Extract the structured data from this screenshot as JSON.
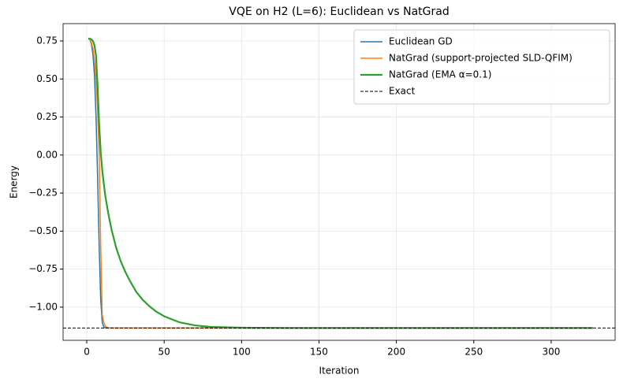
{
  "chart_data": {
    "type": "line",
    "title": "VQE on H2 (L=6): Euclidean vs NatGrad",
    "xlabel": "Iteration",
    "ylabel": "Energy",
    "x": [
      1,
      2,
      3,
      4,
      5,
      6,
      7,
      8,
      9,
      10,
      11,
      12,
      13,
      14,
      15,
      16,
      17,
      18,
      19,
      20,
      22,
      25,
      28,
      32,
      36,
      40,
      45,
      50,
      60,
      70,
      80,
      100,
      130,
      160,
      200,
      250,
      300,
      327
    ],
    "series": [
      {
        "name": "Euclidean GD",
        "color": "#1f77b4",
        "line_width": 1.5,
        "values": [
          0.765,
          0.76,
          0.73,
          0.66,
          0.52,
          0.25,
          -0.15,
          -0.6,
          -0.95,
          -1.1,
          -1.13,
          -1.136,
          -1.137,
          -1.137,
          -1.137,
          -1.137,
          -1.137,
          -1.137,
          -1.137,
          -1.137,
          -1.137,
          -1.137,
          -1.137,
          -1.137,
          -1.137,
          -1.137,
          -1.137,
          -1.137,
          -1.137,
          -1.137,
          -1.137,
          -1.137,
          -1.137,
          -1.137,
          -1.137,
          -1.137,
          -1.137,
          -1.137
        ]
      },
      {
        "name": "NatGrad (support-projected SLD-QFIM)",
        "color": "#ff7f0e",
        "line_width": 1.5,
        "values": [
          0.765,
          0.76,
          0.74,
          0.7,
          0.62,
          0.5,
          0.3,
          0.0,
          -0.6,
          -1.05,
          -1.1,
          -1.125,
          -1.132,
          -1.135,
          -1.137,
          -1.137,
          -1.137,
          -1.137,
          -1.137,
          -1.137,
          -1.137,
          -1.137,
          -1.137,
          -1.137,
          -1.137,
          -1.137,
          -1.137,
          -1.137,
          -1.137,
          -1.137,
          -1.137,
          -1.137,
          -1.137,
          -1.137,
          -1.137,
          -1.137,
          -1.137,
          -1.137
        ]
      },
      {
        "name": "NatGrad (EMA α=0.1)",
        "color": "#2ca02c",
        "line_width": 2.2,
        "values": [
          0.765,
          0.765,
          0.76,
          0.75,
          0.72,
          0.65,
          0.45,
          0.2,
          0.02,
          -0.1,
          -0.19,
          -0.27,
          -0.33,
          -0.39,
          -0.44,
          -0.49,
          -0.53,
          -0.57,
          -0.61,
          -0.64,
          -0.7,
          -0.77,
          -0.83,
          -0.9,
          -0.95,
          -0.99,
          -1.03,
          -1.06,
          -1.1,
          -1.12,
          -1.13,
          -1.135,
          -1.137,
          -1.137,
          -1.137,
          -1.137,
          -1.137,
          -1.137
        ]
      }
    ],
    "reference_line": {
      "name": "Exact",
      "value": -1.137,
      "color": "#000000",
      "dashed": true
    },
    "xlim": [
      -15.3,
      341.3
    ],
    "ylim": [
      -1.218,
      0.864
    ],
    "xticks": [
      0,
      50,
      100,
      150,
      200,
      250,
      300
    ],
    "yticks": [
      {
        "value": -1.0,
        "label": "−1.00"
      },
      {
        "value": -0.75,
        "label": "−0.75"
      },
      {
        "value": -0.5,
        "label": "−0.50"
      },
      {
        "value": -0.25,
        "label": "−0.25"
      },
      {
        "value": 0,
        "label": "0.00"
      },
      {
        "value": 0.25,
        "label": "0.25"
      },
      {
        "value": 0.5,
        "label": "0.50"
      },
      0.75
    ],
    "grid": true,
    "legend": "upper right"
  }
}
